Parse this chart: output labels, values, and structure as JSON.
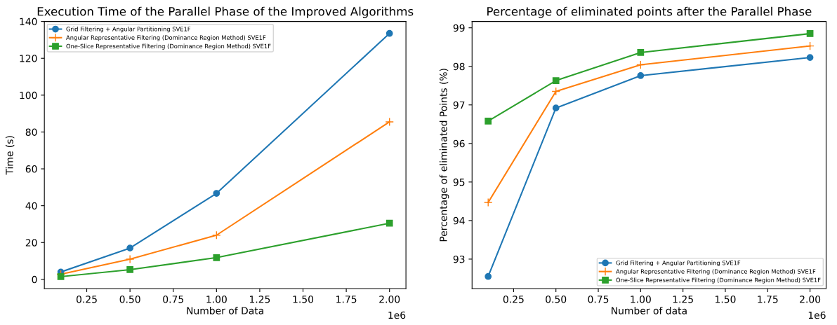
{
  "chart_data": [
    {
      "type": "line",
      "title": "Execution Time of the Parallel Phase of the Improved Algorithms",
      "xlabel": "Number of Data",
      "ylabel": "Time (s)",
      "x": [
        0.1,
        0.5,
        1,
        2
      ],
      "series": [
        {
          "name": "Grid Filtering + Angular Partitioning SVE1F",
          "color": "#1f77b4",
          "marker": "circle",
          "values": [
            4,
            17,
            46.7,
            133.5
          ]
        },
        {
          "name": "Angular Representative Filtering (Dominance Region Method) SVE1F",
          "color": "#ff7f0e",
          "marker": "cross",
          "values": [
            2.8,
            11,
            24,
            85.5
          ]
        },
        {
          "name": "One-Slice Representative Filtering (Dominance Region Method) SVE1F",
          "color": "#2ca02c",
          "marker": "square",
          "values": [
            1.5,
            5.3,
            11.8,
            30.5
          ]
        }
      ],
      "xlim": [
        0.005,
        2.095
      ],
      "xticks": [
        0.25,
        {
          "value": 0.5,
          "label": "0.50"
        },
        0.75,
        {
          "value": 1,
          "label": "1.00"
        },
        1.25,
        {
          "value": 1.5,
          "label": "1.50"
        },
        1.75,
        {
          "value": 2,
          "label": "2.00"
        }
      ],
      "ylim": [
        -5,
        140
      ],
      "yticks": [
        0,
        20,
        40,
        60,
        80,
        100,
        120,
        140
      ],
      "annotations": [
        "1e6"
      ],
      "legend": "top left",
      "grid": false
    },
    {
      "type": "line",
      "title": "Percentage of eliminated points after the Parallel Phase",
      "xlabel": "Number of data",
      "ylabel": "Percentage of eliminated Points (%)",
      "x": [
        0.1,
        0.5,
        1,
        2
      ],
      "series": [
        {
          "name": "Grid Filtering + Angular Partitioning SVE1F",
          "color": "#1f77b4",
          "marker": "circle",
          "values": [
            92.55,
            96.92,
            97.76,
            98.23
          ]
        },
        {
          "name": "Angular Representative Filtering (Dominance Region Method) SVE1F",
          "color": "#ff7f0e",
          "marker": "cross",
          "values": [
            94.47,
            97.35,
            98.04,
            98.53
          ]
        },
        {
          "name": "One-Slice Representative Filtering (Dominance Region Method) SVE1F",
          "color": "#2ca02c",
          "marker": "square",
          "values": [
            96.58,
            97.63,
            98.36,
            98.85
          ]
        }
      ],
      "xlim": [
        0.005,
        2.095
      ],
      "xticks": [
        0.25,
        {
          "value": 0.5,
          "label": "0.50"
        },
        0.75,
        {
          "value": 1,
          "label": "1.00"
        },
        1.25,
        {
          "value": 1.5,
          "label": "1.50"
        },
        1.75,
        {
          "value": 2,
          "label": "2.00"
        }
      ],
      "ylim": [
        92.235,
        99.165
      ],
      "yticks": [
        93,
        94,
        95,
        96,
        97,
        98,
        99
      ],
      "annotations": [
        "1e6"
      ],
      "legend": "bottom right",
      "grid": false
    }
  ]
}
